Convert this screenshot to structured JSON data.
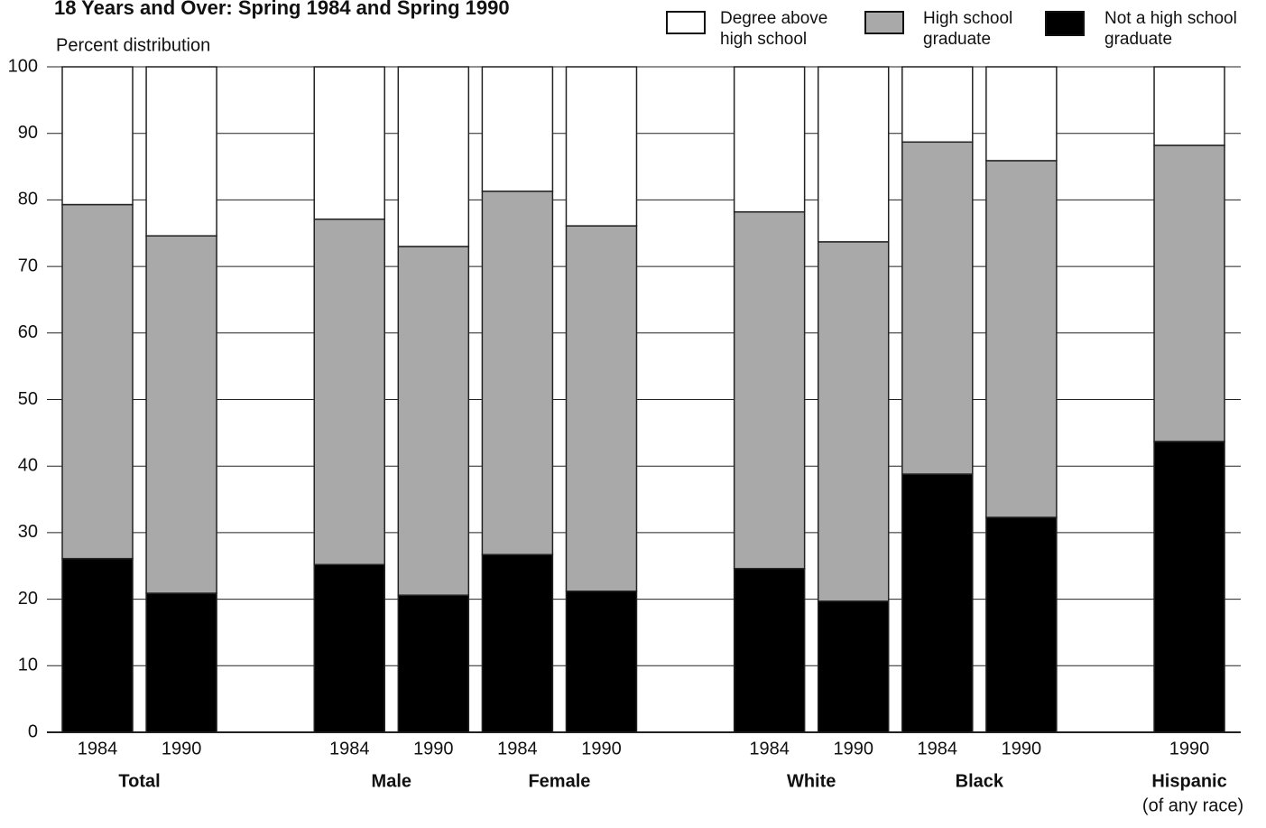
{
  "chart_data": {
    "type": "stacked_bar",
    "title": "18 Years and Over: Spring 1984 and Spring 1990",
    "subtitle": "Percent distribution",
    "categories": [
      "1984",
      "1990",
      null,
      "1984",
      "1990",
      "1984",
      "1990",
      null,
      "1984",
      "1990",
      "1984",
      "1990",
      null,
      "1990"
    ],
    "groups": [
      "Total",
      "Total",
      null,
      "Male",
      "Male",
      "Female",
      "Female",
      null,
      "White",
      "White",
      "Black",
      "Black",
      null,
      "Hispanic"
    ],
    "annotations": [
      {
        "text": "(of any race)"
      }
    ],
    "series": [
      {
        "name": "Not a high school graduate",
        "color": "#000000",
        "values": [
          26.1,
          20.9,
          null,
          25.2,
          20.6,
          26.7,
          21.2,
          null,
          24.6,
          19.7,
          38.8,
          32.3,
          null,
          43.7
        ]
      },
      {
        "name": "High school graduate",
        "color": "#a9a9a9",
        "values": [
          53.2,
          53.7,
          null,
          51.9,
          52.4,
          54.6,
          54.9,
          null,
          53.6,
          54.0,
          49.9,
          53.6,
          null,
          44.5
        ]
      },
      {
        "name": "Degree above high school",
        "color": "#ffffff",
        "values": [
          20.7,
          25.4,
          null,
          22.9,
          27.0,
          18.7,
          23.9,
          null,
          21.8,
          26.3,
          11.3,
          14.1,
          null,
          11.8
        ]
      }
    ],
    "ylim": [
      0,
      100
    ],
    "yticks": [
      0,
      10,
      20,
      30,
      40,
      50,
      60,
      70,
      80,
      90,
      100
    ],
    "grid": true
  }
}
